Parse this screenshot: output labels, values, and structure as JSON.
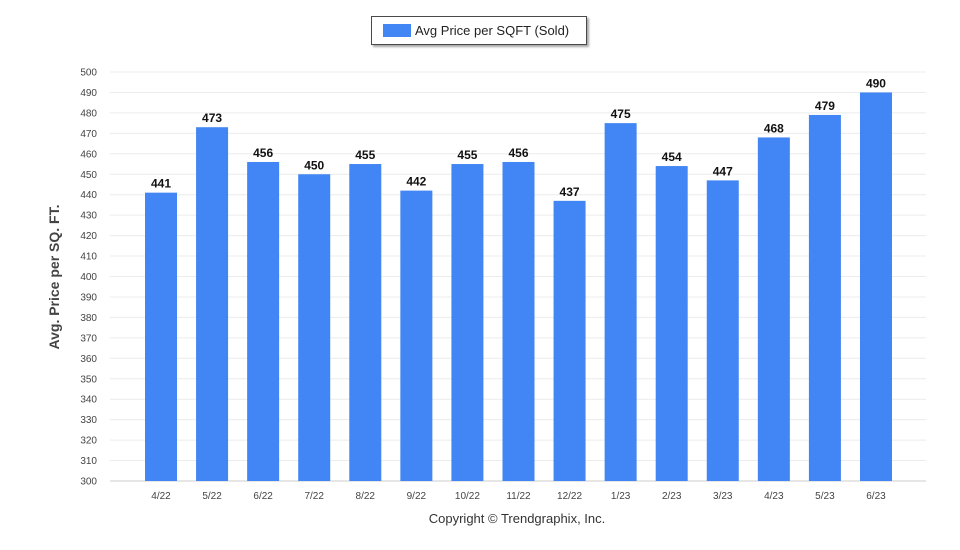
{
  "legend": {
    "label": "Avg Price per SQFT (Sold)",
    "color": "#4285f4"
  },
  "footer": {
    "copyright": "Copyright © Trendgraphix, Inc."
  },
  "chart_data": {
    "type": "bar",
    "title": "",
    "xlabel": "",
    "ylabel": "Avg. Price per SQ. FT.",
    "ylim": [
      300,
      500
    ],
    "yticks": [
      300,
      310,
      320,
      330,
      340,
      350,
      360,
      370,
      380,
      390,
      400,
      410,
      420,
      430,
      440,
      450,
      460,
      470,
      480,
      490,
      500
    ],
    "grid": true,
    "legend_position": "top-center",
    "categories": [
      "4/22",
      "5/22",
      "6/22",
      "7/22",
      "8/22",
      "9/22",
      "10/22",
      "11/22",
      "12/22",
      "1/23",
      "2/23",
      "3/23",
      "4/23",
      "5/23",
      "6/23"
    ],
    "series": [
      {
        "name": "Avg Price per SQFT (Sold)",
        "color": "#4285f4",
        "values": [
          441,
          473,
          456,
          450,
          455,
          442,
          455,
          456,
          437,
          475,
          454,
          447,
          468,
          479,
          490
        ]
      }
    ]
  }
}
